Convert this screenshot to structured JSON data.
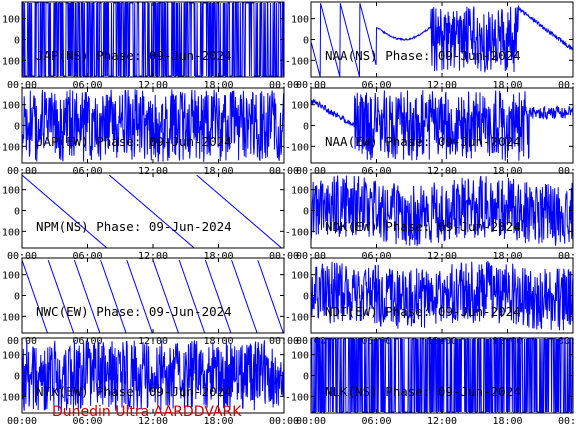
{
  "colors": {
    "trace": "#0000ff",
    "axes": "#000000",
    "label": "#000000",
    "footer": "#cc0000",
    "background": "#ffffff"
  },
  "footer": {
    "text": "Dunedin Ultra AARDDVARK"
  },
  "chart_data": [
    {
      "type": "line",
      "title": "JAP(NS) Phase: 09-Jun-2024",
      "style": "saturated",
      "ylim": [
        -180,
        180
      ],
      "yticks": [
        100,
        0,
        -100
      ],
      "xtick_labels": [
        "00:00",
        "06:00",
        "12:00",
        "18:00",
        "00:00"
      ]
    },
    {
      "type": "line",
      "title": "NAA(NS) Phase: 09-Jun-2024",
      "style": "naa_ns",
      "ylim": [
        -180,
        180
      ],
      "yticks": [
        100,
        0,
        -100
      ],
      "xtick_labels": [
        "00:00",
        "06:00",
        "12:00",
        "18:00",
        "00:00"
      ]
    },
    {
      "type": "line",
      "title": "JAP(EW) Phase: 09-Jun-2024",
      "style": "dense_gappy",
      "ylim": [
        -180,
        180
      ],
      "yticks": [
        100,
        0,
        -100
      ],
      "xtick_labels": [
        "00:00",
        "06:00",
        "12:00",
        "18:00",
        "00:00"
      ]
    },
    {
      "type": "line",
      "title": "NAA(EW) Phase: 09-Jun-2024",
      "style": "naa_ew",
      "ylim": [
        -180,
        180
      ],
      "yticks": [
        100,
        0,
        -100
      ],
      "xtick_labels": [
        "00:00",
        "06:00",
        "12:00",
        "18:00",
        "00:00"
      ]
    },
    {
      "type": "line",
      "title": "NPM(NS) Phase: 09-Jun-2024",
      "style": "sawtooth_slow",
      "ylim": [
        -180,
        180
      ],
      "yticks": [
        100,
        0,
        -100
      ],
      "xtick_labels": [
        "00:00",
        "06:00",
        "12:00",
        "18:00",
        "00:00"
      ]
    },
    {
      "type": "line",
      "title": "NDK(EW) Phase: 09-Jun-2024",
      "style": "noisy_moderate",
      "ylim": [
        -180,
        180
      ],
      "yticks": [
        100,
        0,
        -100
      ],
      "xtick_labels": [
        "00:00",
        "06:00",
        "12:00",
        "18:00",
        "00:00"
      ]
    },
    {
      "type": "line",
      "title": "NWC(EW) Phase: 09-Jun-2024",
      "style": "sawtooth_fast",
      "ylim": [
        -180,
        180
      ],
      "yticks": [
        100,
        0,
        -100
      ],
      "xtick_labels": [
        "00:00",
        "06:00",
        "12:00",
        "18:00",
        "00:00"
      ]
    },
    {
      "type": "line",
      "title": "NDI(EW) Phase: 09-Jun-2024",
      "style": "noisy_moderate",
      "ylim": [
        -180,
        180
      ],
      "yticks": [
        100,
        0,
        -100
      ],
      "xtick_labels": [
        "00:00",
        "06:00",
        "12:00",
        "18:00",
        "00:00"
      ]
    },
    {
      "type": "line",
      "title": "NTX(EW) Phase: 09-Jun-2024",
      "style": "noisy_dense",
      "ylim": [
        -180,
        180
      ],
      "yticks": [
        100,
        0,
        -100
      ],
      "xtick_labels": [
        "00:00",
        "06:00",
        "12:00",
        "18:00",
        "00:00"
      ]
    },
    {
      "type": "line",
      "title": "NLK(NS) Phase: 09-Jun-2024",
      "style": "striped",
      "ylim": [
        -180,
        180
      ],
      "yticks": [
        100,
        0,
        -100
      ],
      "xtick_labels": [
        "00:00",
        "06:00",
        "12:00",
        "18:00",
        "00:00"
      ]
    }
  ]
}
